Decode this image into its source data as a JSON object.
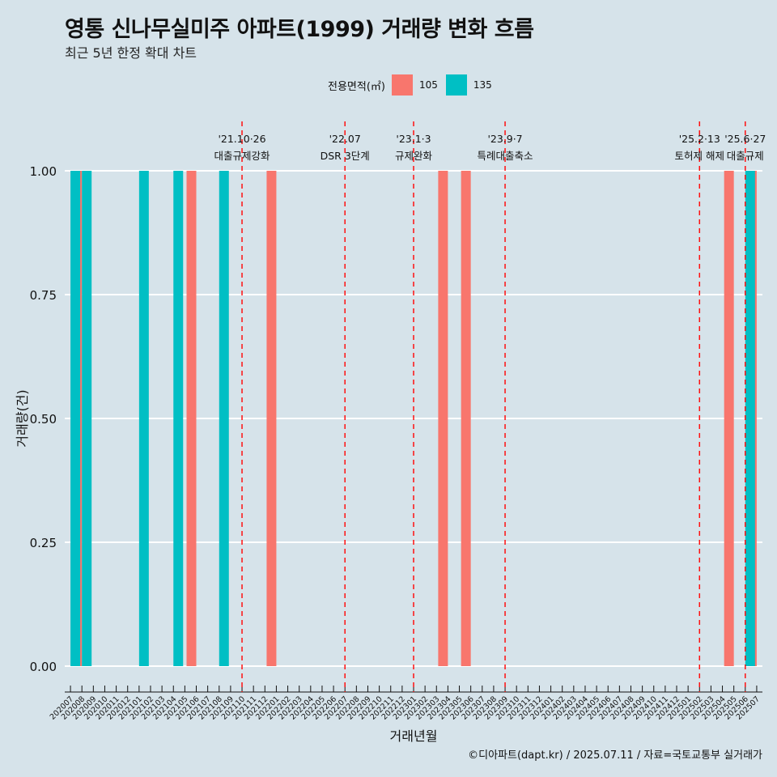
{
  "chart_data": {
    "type": "bar",
    "title": "영통 신나무실미주 아파트(1999) 거래량 변화 흐름",
    "subtitle": "최근 5년 한정 확대 차트",
    "xlabel": "거래년월",
    "ylabel": "거래량(건)",
    "ylim": [
      0,
      1
    ],
    "yticks": [
      "0.00",
      "0.25",
      "0.50",
      "0.75",
      "1.00"
    ],
    "legend_title": "전용면적(㎡)",
    "legend_position": "top",
    "colors": {
      "105": "#f8766d",
      "135": "#00bfc4"
    },
    "categories": [
      "202007",
      "202008",
      "202009",
      "202010",
      "202011",
      "202012",
      "202101",
      "202102",
      "202103",
      "202104",
      "202105",
      "202106",
      "202107",
      "202108",
      "202109",
      "202110",
      "202111",
      "202112",
      "202201",
      "202202",
      "202203",
      "202204",
      "202205",
      "202206",
      "202207",
      "202208",
      "202209",
      "202210",
      "202211",
      "202212",
      "202301",
      "202302",
      "202303",
      "202304",
      "202305",
      "202306",
      "202307",
      "202308",
      "202309",
      "202310",
      "202311",
      "202312",
      "202401",
      "202402",
      "202403",
      "202404",
      "202405",
      "202406",
      "202407",
      "202408",
      "202409",
      "202410",
      "202411",
      "202412",
      "202501",
      "202502",
      "202503",
      "202504",
      "202505",
      "202506",
      "202507"
    ],
    "series": [
      {
        "name": "105",
        "values": [
          0,
          1,
          0,
          0,
          0,
          0,
          0,
          0,
          0,
          0,
          0,
          1,
          0,
          0,
          0,
          0,
          0,
          0,
          1,
          0,
          0,
          0,
          0,
          0,
          0,
          0,
          0,
          0,
          0,
          0,
          0,
          0,
          0,
          1,
          0,
          1,
          0,
          0,
          0,
          0,
          0,
          0,
          0,
          0,
          0,
          0,
          0,
          0,
          0,
          0,
          0,
          0,
          0,
          0,
          0,
          0,
          0,
          0,
          1,
          0,
          1
        ]
      },
      {
        "name": "135",
        "values": [
          1,
          1,
          0,
          0,
          0,
          0,
          1,
          0,
          0,
          1,
          0,
          0,
          0,
          1,
          0,
          0,
          0,
          0,
          0,
          0,
          0,
          0,
          0,
          0,
          0,
          0,
          0,
          0,
          0,
          0,
          0,
          0,
          0,
          0,
          0,
          0,
          0,
          0,
          0,
          0,
          0,
          0,
          0,
          0,
          0,
          0,
          0,
          0,
          0,
          0,
          0,
          0,
          0,
          0,
          0,
          0,
          0,
          0,
          0,
          1,
          0
        ]
      }
    ],
    "annotations": [
      {
        "month": "202110",
        "date": "'21.10·26",
        "label": "대출규제강화"
      },
      {
        "month": "202207",
        "date": "'22.07",
        "label": "DSR 3단계"
      },
      {
        "month": "202301",
        "date": "'23.1·3",
        "label": "규제완화"
      },
      {
        "month": "202309",
        "date": "'23.9·7",
        "label": "특례대출축소"
      },
      {
        "month": "202502",
        "date": "'25.2·13",
        "label": "토허제 해제"
      },
      {
        "month": "202506",
        "date": "'25.6·27",
        "label": "대출규제"
      }
    ],
    "caption": "©디아파트(dapt.kr) / 2025.07.11 / 자료=국토교통부 실거래가"
  }
}
